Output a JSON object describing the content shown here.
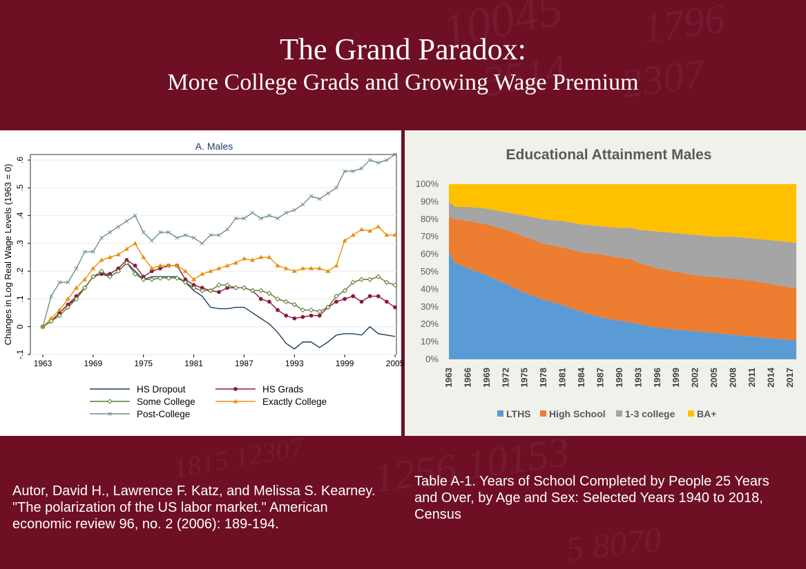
{
  "slide": {
    "title": "The Grand Paradox:",
    "subtitle": "More College Grads and Growing Wage Premium",
    "caption_left": "Autor, David H., Lawrence F. Katz, and Melissa S. Kearney. \"The polarization of the US labor market.\" American economic review 96, no. 2 (2006): 189-194.",
    "caption_right": "Table A-1. Years of School Completed by People 25 Years and Over, by Age and Sex:  Selected Years 1940 to 2018, Census",
    "colors": {
      "background": "#6e0f24",
      "text": "#ffffff"
    }
  },
  "chart_data": [
    {
      "type": "line",
      "title": "A. Males",
      "xlabel": "",
      "ylabel": "Changes in Log Real Wage Levels (1963 = 0)",
      "xlim": [
        1963,
        2005
      ],
      "ylim": [
        -0.1,
        0.62
      ],
      "x_ticks": [
        1963,
        1969,
        1975,
        1981,
        1987,
        1993,
        1999,
        2005
      ],
      "y_ticks": [
        -0.1,
        0,
        0.1,
        0.2,
        0.3,
        0.4,
        0.5,
        0.6
      ],
      "y_tick_labels": [
        "-.1",
        "0",
        ".1",
        ".2",
        ".3",
        ".4",
        ".5",
        ".6"
      ],
      "grid": true,
      "legend": "bottom",
      "x": [
        1963,
        1964,
        1965,
        1966,
        1967,
        1968,
        1969,
        1970,
        1971,
        1972,
        1973,
        1974,
        1975,
        1976,
        1977,
        1978,
        1979,
        1980,
        1981,
        1982,
        1983,
        1984,
        1985,
        1986,
        1987,
        1988,
        1989,
        1990,
        1991,
        1992,
        1993,
        1994,
        1995,
        1996,
        1997,
        1998,
        1999,
        2000,
        2001,
        2002,
        2003,
        2004,
        2005
      ],
      "series": [
        {
          "name": "HS Dropout",
          "color": "#1a3b5c",
          "marker": "none",
          "values": [
            0,
            0.02,
            0.05,
            0.08,
            0.1,
            0.14,
            0.18,
            0.19,
            0.18,
            0.2,
            0.23,
            0.2,
            0.17,
            0.18,
            0.18,
            0.18,
            0.18,
            0.16,
            0.13,
            0.11,
            0.07,
            0.065,
            0.065,
            0.07,
            0.07,
            0.05,
            0.03,
            0.01,
            -0.02,
            -0.06,
            -0.08,
            -0.055,
            -0.055,
            -0.075,
            -0.055,
            -0.03,
            -0.025,
            -0.025,
            -0.03,
            0,
            -0.025,
            -0.03,
            -0.035
          ]
        },
        {
          "name": "HS Grads",
          "color": "#8b1a3a",
          "marker": "circle",
          "values": [
            0,
            0.02,
            0.05,
            0.08,
            0.11,
            0.14,
            0.18,
            0.19,
            0.19,
            0.21,
            0.24,
            0.22,
            0.18,
            0.2,
            0.21,
            0.22,
            0.22,
            0.17,
            0.15,
            0.14,
            0.13,
            0.125,
            0.14,
            0.14,
            0.14,
            0.13,
            0.1,
            0.09,
            0.06,
            0.04,
            0.03,
            0.035,
            0.04,
            0.04,
            0.07,
            0.09,
            0.1,
            0.11,
            0.09,
            0.11,
            0.11,
            0.09,
            0.07
          ]
        },
        {
          "name": "Some College",
          "color": "#5a7a2a",
          "marker": "diamond",
          "values": [
            0,
            0.02,
            0.04,
            0.07,
            0.1,
            0.14,
            0.18,
            0.2,
            0.18,
            0.2,
            0.23,
            0.19,
            0.17,
            0.17,
            0.175,
            0.175,
            0.175,
            0.16,
            0.14,
            0.13,
            0.13,
            0.15,
            0.15,
            0.14,
            0.14,
            0.13,
            0.13,
            0.12,
            0.1,
            0.09,
            0.08,
            0.06,
            0.06,
            0.055,
            0.07,
            0.11,
            0.13,
            0.16,
            0.17,
            0.17,
            0.18,
            0.16,
            0.15
          ]
        },
        {
          "name": "Exactly College",
          "color": "#e8900a",
          "marker": "triangle",
          "values": [
            0,
            0.03,
            0.06,
            0.1,
            0.14,
            0.17,
            0.21,
            0.24,
            0.25,
            0.26,
            0.28,
            0.3,
            0.25,
            0.21,
            0.22,
            0.22,
            0.22,
            0.2,
            0.17,
            0.19,
            0.2,
            0.21,
            0.22,
            0.23,
            0.245,
            0.24,
            0.25,
            0.25,
            0.22,
            0.21,
            0.2,
            0.21,
            0.21,
            0.21,
            0.2,
            0.22,
            0.31,
            0.33,
            0.35,
            0.345,
            0.36,
            0.33,
            0.33
          ]
        },
        {
          "name": "Post-College",
          "color": "#6f8f88",
          "marker": "x",
          "values": [
            0,
            0.11,
            0.16,
            0.16,
            0.21,
            0.27,
            0.27,
            0.32,
            0.34,
            0.36,
            0.38,
            0.4,
            0.34,
            0.31,
            0.34,
            0.34,
            0.32,
            0.33,
            0.32,
            0.3,
            0.33,
            0.33,
            0.35,
            0.39,
            0.39,
            0.41,
            0.39,
            0.4,
            0.39,
            0.41,
            0.42,
            0.44,
            0.47,
            0.46,
            0.48,
            0.5,
            0.56,
            0.56,
            0.57,
            0.6,
            0.59,
            0.6,
            0.62
          ]
        }
      ]
    },
    {
      "type": "area",
      "title": "Educational Attainment Males",
      "xlabel": "",
      "ylabel": "",
      "stacked": "percent",
      "ylim": [
        0,
        100
      ],
      "y_tick_labels": [
        "0%",
        "10%",
        "20%",
        "30%",
        "40%",
        "50%",
        "60%",
        "70%",
        "80%",
        "90%",
        "100%"
      ],
      "x_tick_labels": [
        "1963",
        "1966",
        "1969",
        "1972",
        "1975",
        "1978",
        "1981",
        "1984",
        "1987",
        "1990",
        "1993",
        "1996",
        "1999",
        "2002",
        "2005",
        "2008",
        "2011",
        "2014",
        "2017"
      ],
      "legend": "bottom",
      "x": [
        1963,
        1964,
        1966,
        1969,
        1972,
        1975,
        1978,
        1981,
        1984,
        1987,
        1990,
        1992,
        1993,
        1996,
        1999,
        2002,
        2005,
        2008,
        2011,
        2014,
        2017,
        2018
      ],
      "series": [
        {
          "name": "LTHS",
          "color": "#5b9bd5",
          "values": [
            61,
            55,
            52,
            48,
            43,
            38,
            34,
            31,
            27,
            24,
            22,
            21,
            20,
            18,
            17,
            16,
            15,
            14,
            13,
            12,
            11,
            10.5
          ]
        },
        {
          "name": "High School",
          "color": "#ed7d31",
          "values": [
            20,
            25,
            27,
            29,
            31,
            32,
            32,
            33,
            34,
            36,
            36,
            36,
            35,
            34,
            33,
            32,
            32,
            32,
            32,
            31,
            30,
            30
          ]
        },
        {
          "name": "1-3 college",
          "color": "#a5a5a5",
          "values": [
            9,
            7,
            8,
            9,
            10,
            12,
            14,
            15,
            16,
            16,
            17,
            18,
            19,
            21,
            22,
            23,
            23,
            24,
            24,
            25,
            26,
            26
          ]
        },
        {
          "name": "BA+",
          "color": "#ffc000",
          "values": [
            10,
            13,
            13,
            14,
            16,
            18,
            20,
            21,
            23,
            24,
            25,
            25,
            26,
            27,
            28,
            29,
            30,
            30,
            31,
            32,
            33,
            33.5
          ]
        }
      ]
    }
  ]
}
